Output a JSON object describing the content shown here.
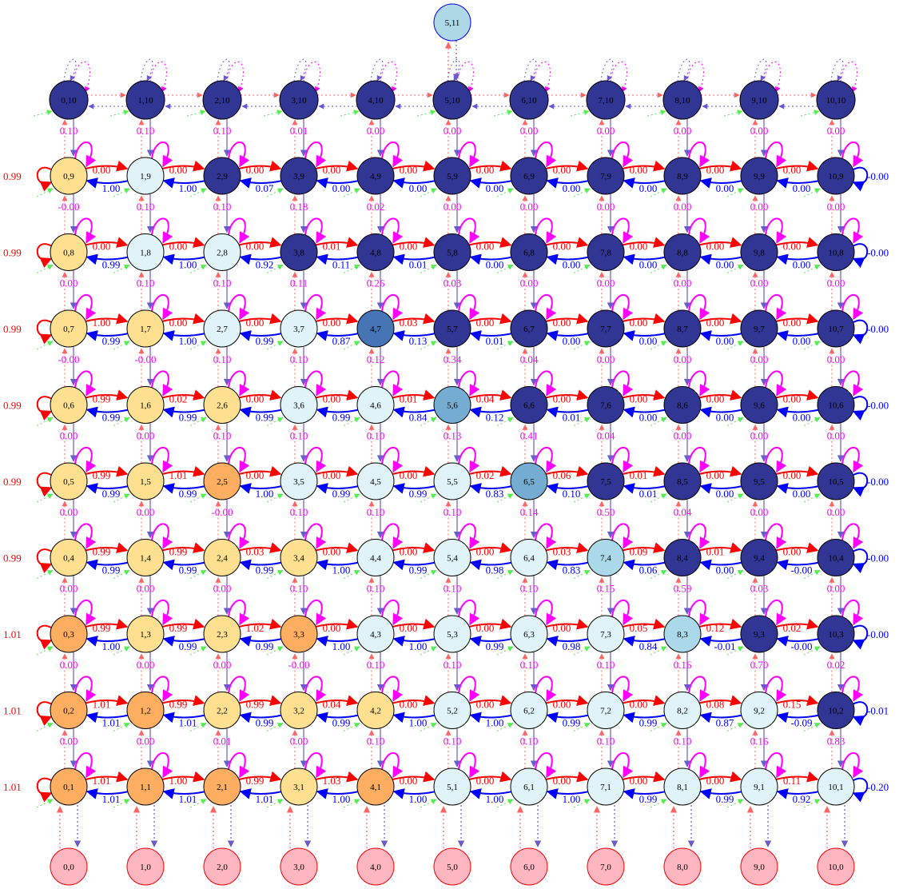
{
  "colors": {
    "right_edge": "#ff0000",
    "left_edge": "#0000ff",
    "self_loop": "#ff00ff",
    "vertical_edge": "#ff00ff",
    "boundary_green": "#44cc44",
    "fill_light": "#e0f3f8",
    "fill_yellow": "#fee090",
    "fill_orange": "#fdae61",
    "fill_dark": "#313695",
    "fill_mid": "#4575b4",
    "fill_sky": "#abd9e9",
    "fill_steel": "#74add1",
    "fill_pink": "#ffb6c1",
    "top_node_fill": "#add8e6"
  },
  "top_node": {
    "label": "5,11"
  },
  "rows": [
    {
      "y": 10,
      "nodes": [
        "0,10",
        "1,10",
        "2,10",
        "3,10",
        "4,10",
        "5,10",
        "6,10",
        "7,10",
        "8,10",
        "9,10",
        "10,10"
      ],
      "fills": [
        "dark",
        "dark",
        "dark",
        "dark",
        "dark",
        "dark",
        "dark",
        "dark",
        "dark",
        "dark",
        "dark"
      ],
      "right": [],
      "left": [],
      "outer_left": "",
      "outer_right": "",
      "below": [
        "0.10",
        "0.10",
        "0.10",
        "0.01",
        "0.00",
        "0.00",
        "0.00",
        "0.00",
        "0.00",
        "0.00",
        "0.00"
      ]
    },
    {
      "y": 9,
      "nodes": [
        "0,9",
        "1,9",
        "2,9",
        "3,9",
        "4,9",
        "5,9",
        "6,9",
        "7,9",
        "8,9",
        "9,9",
        "10,9"
      ],
      "fills": [
        "yellow",
        "light",
        "dark",
        "dark",
        "dark",
        "dark",
        "dark",
        "dark",
        "dark",
        "dark",
        "dark"
      ],
      "right": [
        "0.00",
        "0.00",
        "0.00",
        "0.00",
        "0.00",
        "0.00",
        "0.00",
        "0.00",
        "0.00",
        "0.00"
      ],
      "left": [
        "1.00",
        "1.00",
        "0.07",
        "0.00",
        "0.00",
        "0.00",
        "0.00",
        "0.00",
        "0.00",
        "0.00"
      ],
      "outer_left": "0.99",
      "outer_right": "0.00",
      "below": [
        "-0.00",
        "0.10",
        "0.10",
        "0.18",
        "0.02",
        "0.00",
        "0.00",
        "0.00",
        "0.00",
        "0.00",
        "0.00"
      ]
    },
    {
      "y": 8,
      "nodes": [
        "0,8",
        "1,8",
        "2,8",
        "3,8",
        "4,8",
        "5,8",
        "6,8",
        "7,8",
        "8,8",
        "9,8",
        "10,8"
      ],
      "fills": [
        "yellow",
        "light",
        "light",
        "dark",
        "dark",
        "dark",
        "dark",
        "dark",
        "dark",
        "dark",
        "dark"
      ],
      "right": [
        "0.00",
        "0.00",
        "0.00",
        "0.01",
        "0.00",
        "0.00",
        "0.00",
        "0.00",
        "0.00",
        "0.00"
      ],
      "left": [
        "0.99",
        "1.00",
        "0.92",
        "0.11",
        "0.01",
        "0.00",
        "0.00",
        "0.00",
        "0.00",
        "0.00"
      ],
      "outer_left": "0.99",
      "outer_right": "0.00",
      "below": [
        "0.00",
        "0.10",
        "0.10",
        "0.11",
        "0.26",
        "0.03",
        "0.00",
        "0.00",
        "0.00",
        "0.00",
        "0.00"
      ]
    },
    {
      "y": 7,
      "nodes": [
        "0,7",
        "1,7",
        "2,7",
        "3,7",
        "4,7",
        "5,7",
        "6,7",
        "7,7",
        "8,7",
        "9,7",
        "10,7"
      ],
      "fills": [
        "yellow",
        "yellow",
        "light",
        "light",
        "mid",
        "dark",
        "dark",
        "dark",
        "dark",
        "dark",
        "dark"
      ],
      "right": [
        "1.00",
        "0.00",
        "0.00",
        "0.00",
        "0.03",
        "0.00",
        "0.00",
        "0.00",
        "0.00",
        "0.00"
      ],
      "left": [
        "0.99",
        "1.00",
        "0.99",
        "0.87",
        "0.13",
        "0.01",
        "0.00",
        "0.00",
        "0.00",
        "0.00"
      ],
      "outer_left": "0.99",
      "outer_right": "0.00",
      "below": [
        "-0.00",
        "-0.00",
        "0.10",
        "0.10",
        "0.12",
        "0.34",
        "0.04",
        "0.00",
        "0.00",
        "0.00",
        "0.00"
      ]
    },
    {
      "y": 6,
      "nodes": [
        "0,6",
        "1,6",
        "2,6",
        "3,6",
        "4,6",
        "5,6",
        "6,6",
        "7,6",
        "8,6",
        "9,6",
        "10,6"
      ],
      "fills": [
        "yellow",
        "yellow",
        "yellow",
        "light",
        "light",
        "steel",
        "dark",
        "dark",
        "dark",
        "dark",
        "dark"
      ],
      "right": [
        "0.99",
        "0.02",
        "0.00",
        "0.00",
        "0.01",
        "0.04",
        "0.00",
        "0.00",
        "0.00",
        "0.00"
      ],
      "left": [
        "0.99",
        "0.99",
        "0.99",
        "0.99",
        "0.84",
        "0.12",
        "0.01",
        "0.00",
        "0.00",
        "0.00"
      ],
      "outer_left": "0.99",
      "outer_right": "0.00",
      "below": [
        "0.00",
        "0.00",
        "0.10",
        "0.10",
        "0.10",
        "0.13",
        "0.41",
        "0.04",
        "0.00",
        "0.00",
        "0.00"
      ]
    },
    {
      "y": 5,
      "nodes": [
        "0,5",
        "1,5",
        "2,5",
        "3,5",
        "4,5",
        "5,5",
        "6,5",
        "7,5",
        "8,5",
        "9,5",
        "10,5"
      ],
      "fills": [
        "yellow",
        "yellow",
        "orange",
        "light",
        "light",
        "light",
        "steel",
        "dark",
        "dark",
        "dark",
        "dark"
      ],
      "right": [
        "0.99",
        "1.01",
        "0.00",
        "0.00",
        "0.00",
        "0.02",
        "0.06",
        "0.01",
        "0.00",
        "0.00"
      ],
      "left": [
        "0.99",
        "0.99",
        "1.00",
        "0.99",
        "0.99",
        "0.83",
        "0.10",
        "0.01",
        "0.00",
        "0.00"
      ],
      "outer_left": "0.99",
      "outer_right": "0.00",
      "below": [
        "0.00",
        "0.00",
        "-0.00",
        "0.10",
        "0.10",
        "0.10",
        "0.14",
        "0.50",
        "0.04",
        "0.00",
        "0.00"
      ]
    },
    {
      "y": 4,
      "nodes": [
        "0,4",
        "1,4",
        "2,4",
        "3,4",
        "4,4",
        "5,4",
        "6,4",
        "7,4",
        "8,4",
        "9,4",
        "10,4"
      ],
      "fills": [
        "yellow",
        "yellow",
        "yellow",
        "yellow",
        "light",
        "light",
        "light",
        "sky",
        "dark",
        "dark",
        "dark"
      ],
      "right": [
        "0.99",
        "0.99",
        "0.03",
        "0.00",
        "0.00",
        "0.00",
        "0.03",
        "0.09",
        "0.01",
        "0.00"
      ],
      "left": [
        "0.99",
        "0.99",
        "0.99",
        "1.00",
        "0.99",
        "0.98",
        "0.83",
        "0.06",
        "0.00",
        "-0.00"
      ],
      "outer_left": "0.99",
      "outer_right": "0.00",
      "below": [
        "0.00",
        "0.00",
        "0.00",
        "0.10",
        "0.10",
        "0.10",
        "0.10",
        "0.15",
        "0.59",
        "0.03",
        "0.00"
      ]
    },
    {
      "y": 3,
      "nodes": [
        "0,3",
        "1,3",
        "2,3",
        "3,3",
        "4,3",
        "5,3",
        "6,3",
        "7,3",
        "8,3",
        "9,3",
        "10,3"
      ],
      "fills": [
        "orange",
        "yellow",
        "yellow",
        "orange",
        "light",
        "light",
        "light",
        "light",
        "sky",
        "dark",
        "dark"
      ],
      "right": [
        "0.99",
        "0.99",
        "1.02",
        "0.00",
        "0.00",
        "0.00",
        "0.00",
        "0.05",
        "0.12",
        "0.02"
      ],
      "left": [
        "1.00",
        "0.99",
        "0.99",
        "1.00",
        "1.00",
        "0.99",
        "0.98",
        "0.84",
        "-0.01",
        "-0.00"
      ],
      "outer_left": "1.01",
      "outer_right": "0.00",
      "below": [
        "0.00",
        "0.00",
        "0.00",
        "-0.00",
        "0.10",
        "0.10",
        "0.10",
        "0.10",
        "0.16",
        "0.70",
        "0.02"
      ]
    },
    {
      "y": 2,
      "nodes": [
        "0,2",
        "1,2",
        "2,2",
        "3,2",
        "4,2",
        "5,2",
        "6,2",
        "7,2",
        "8,2",
        "9,2",
        "10,2"
      ],
      "fills": [
        "orange",
        "orange",
        "yellow",
        "yellow",
        "yellow",
        "light",
        "light",
        "light",
        "light",
        "light",
        "dark"
      ],
      "right": [
        "1.01",
        "0.99",
        "0.99",
        "0.04",
        "0.00",
        "0.00",
        "0.00",
        "0.00",
        "0.08",
        "0.15"
      ],
      "left": [
        "1.01",
        "1.01",
        "0.99",
        "0.99",
        "1.00",
        "1.00",
        "0.99",
        "0.99",
        "0.87",
        "-0.09"
      ],
      "outer_left": "1.01",
      "outer_right": "0.01",
      "below": [
        "0.00",
        "0.00",
        "0.01",
        "0.00",
        "0.10",
        "0.10",
        "0.10",
        "0.10",
        "0.10",
        "0.16",
        "0.83"
      ]
    },
    {
      "y": 1,
      "nodes": [
        "0,1",
        "1,1",
        "2,1",
        "3,1",
        "4,1",
        "5,1",
        "6,1",
        "7,1",
        "8,1",
        "9,1",
        "10,1"
      ],
      "fills": [
        "orange",
        "orange",
        "orange",
        "yellow",
        "orange",
        "light",
        "light",
        "light",
        "light",
        "light",
        "light"
      ],
      "right": [
        "1.01",
        "1.00",
        "0.99",
        "1.03",
        "0.00",
        "0.00",
        "0.00",
        "0.00",
        "0.00",
        "0.11"
      ],
      "left": [
        "1.01",
        "1.01",
        "1.01",
        "1.00",
        "1.00",
        "1.00",
        "1.00",
        "0.99",
        "0.99",
        "0.92"
      ],
      "outer_left": "1.01",
      "outer_right": "0.20",
      "below": []
    }
  ],
  "bottom_nodes": [
    "0,0",
    "1,0",
    "2,0",
    "3,0",
    "4,0",
    "5,0",
    "6,0",
    "7,0",
    "8,0",
    "9,0",
    "10,0"
  ]
}
